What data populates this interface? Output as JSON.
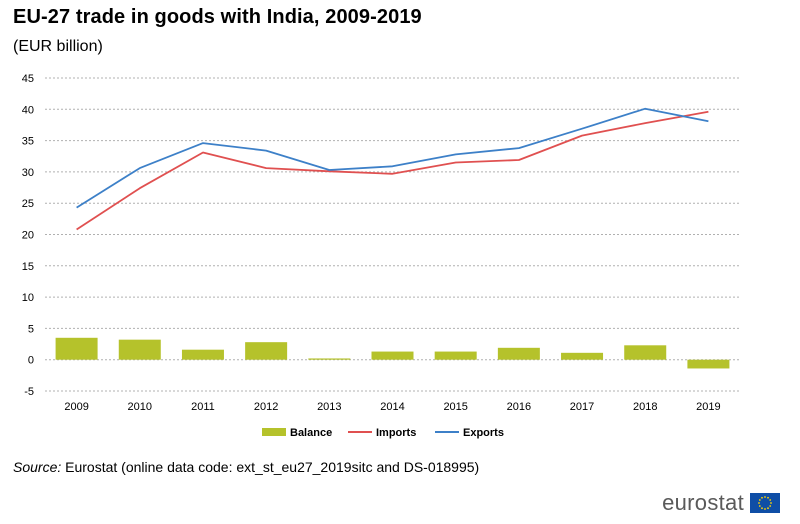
{
  "title": "EU-27 trade in goods with India, 2009-2019",
  "subtitle": "(EUR billion)",
  "source_label": "Source:",
  "source_text": "Eurostat (online data code: ext_st_eu27_2019sitc and DS-018995)",
  "brand": "eurostat",
  "colors": {
    "balance": "#b5c22b",
    "imports": "#e05050",
    "exports": "#3d80c8",
    "grid": "#b0b0b0",
    "flag_blue": "#0f4ea6",
    "flag_star": "#ffd400"
  },
  "chart_data": {
    "type": "line+bar",
    "title": "EU-27 trade in goods with India, 2009-2019",
    "ylabel": "EUR billion",
    "ylim": [
      -5,
      45
    ],
    "yticks": [
      -5,
      0,
      5,
      10,
      15,
      20,
      25,
      30,
      35,
      40,
      45
    ],
    "grid": true,
    "legend_position": "bottom",
    "categories": [
      "2009",
      "2010",
      "2011",
      "2012",
      "2013",
      "2014",
      "2015",
      "2016",
      "2017",
      "2018",
      "2019"
    ],
    "series": [
      {
        "name": "Balance",
        "type": "bar",
        "color": "#b5c22b",
        "values": [
          3.5,
          3.2,
          1.6,
          2.8,
          0.2,
          1.3,
          1.3,
          1.9,
          1.1,
          2.3,
          -1.4
        ]
      },
      {
        "name": "Imports",
        "type": "line",
        "color": "#e05050",
        "values": [
          20.8,
          27.4,
          33.1,
          30.6,
          30.1,
          29.7,
          31.5,
          31.9,
          35.8,
          37.8,
          39.6
        ]
      },
      {
        "name": "Exports",
        "type": "line",
        "color": "#3d80c8",
        "values": [
          24.3,
          30.6,
          34.6,
          33.4,
          30.3,
          30.9,
          32.8,
          33.8,
          36.9,
          40.1,
          38.1
        ]
      }
    ]
  }
}
